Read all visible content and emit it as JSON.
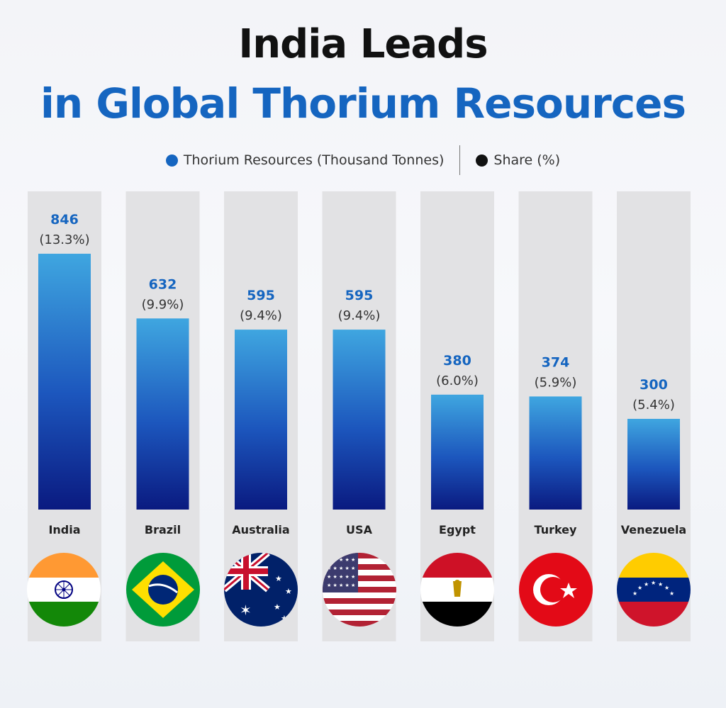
{
  "title_line1": "India Leads",
  "title_line2": "in Global Thorium Resources",
  "legend": {
    "resources": "Thorium Resources (Thousand Tonnes)",
    "share": "Share (%)"
  },
  "colors": {
    "title_blue": "#1565c0",
    "bar_top": "#3fa6e0",
    "bar_bottom": "#0a1a80",
    "track": "#e2e2e4",
    "value_label": "#1565c0",
    "legend_resources_dot": "#1565c0",
    "legend_share_dot": "#111111"
  },
  "chart_data": {
    "type": "bar",
    "categories": [
      "India",
      "Brazil",
      "Australia",
      "USA",
      "Egypt",
      "Turkey",
      "Venezuela"
    ],
    "series": [
      {
        "name": "Thorium Resources (Thousand Tonnes)",
        "values": [
          846,
          632,
          595,
          595,
          380,
          374,
          300
        ]
      },
      {
        "name": "Share (%)",
        "values": [
          13.3,
          9.9,
          9.4,
          9.4,
          6.0,
          5.9,
          5.4
        ]
      }
    ],
    "value_labels": [
      "846",
      "632",
      "595",
      "595",
      "380",
      "374",
      "300"
    ],
    "share_labels": [
      "(13.3%)",
      "(9.9%)",
      "(9.4%)",
      "(9.4%)",
      "(6.0%)",
      "(5.9%)",
      "(5.4%)"
    ],
    "legend_placement": "top-center",
    "grid": false
  },
  "flags": [
    {
      "country": "India",
      "icon": "india-flag-icon"
    },
    {
      "country": "Brazil",
      "icon": "brazil-flag-icon"
    },
    {
      "country": "Australia",
      "icon": "australia-flag-icon"
    },
    {
      "country": "USA",
      "icon": "usa-flag-icon"
    },
    {
      "country": "Egypt",
      "icon": "egypt-flag-icon"
    },
    {
      "country": "Turkey",
      "icon": "turkey-flag-icon"
    },
    {
      "country": "Venezuela",
      "icon": "venezuela-flag-icon"
    }
  ]
}
